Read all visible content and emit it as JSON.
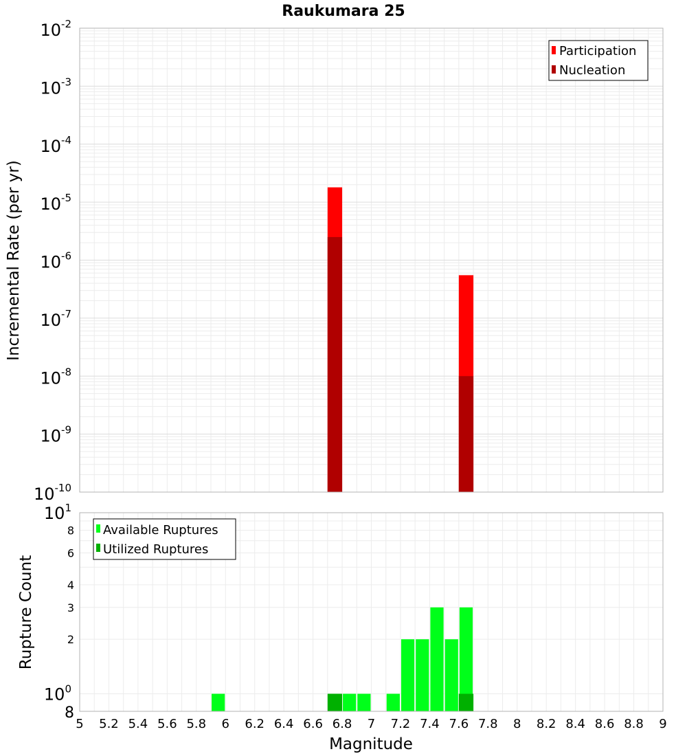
{
  "chart_data": [
    {
      "type": "bar",
      "title": "Raukumara 25",
      "ylabel": "Incremental Rate (per yr)",
      "yscale": "log",
      "ylim": [
        1e-10,
        0.01
      ],
      "xlim": [
        5,
        9
      ],
      "y_ticks": [
        {
          "base": "10",
          "exp": "-2"
        },
        {
          "base": "10",
          "exp": "-3"
        },
        {
          "base": "10",
          "exp": "-4"
        },
        {
          "base": "10",
          "exp": "-5"
        },
        {
          "base": "10",
          "exp": "-6"
        },
        {
          "base": "10",
          "exp": "-7"
        },
        {
          "base": "10",
          "exp": "-8"
        },
        {
          "base": "10",
          "exp": "-9"
        },
        {
          "base": "10",
          "exp": "-10"
        }
      ],
      "grid": true,
      "legend_position": "top-right",
      "series": [
        {
          "name": "Participation",
          "color": "#ff0000",
          "points": [
            {
              "x": 6.75,
              "y": 1.8e-05
            },
            {
              "x": 7.65,
              "y": 5.5e-07
            }
          ]
        },
        {
          "name": "Nucleation",
          "color": "#b00000",
          "points": [
            {
              "x": 6.75,
              "y": 2.5e-06
            },
            {
              "x": 7.65,
              "y": 1e-08
            }
          ]
        }
      ]
    },
    {
      "type": "bar",
      "xlabel": "Magnitude",
      "ylabel": "Rupture Count",
      "yscale": "log",
      "ylim": [
        0.8,
        10
      ],
      "xlim": [
        5,
        9
      ],
      "x_ticks": [
        "5",
        "5.2",
        "5.4",
        "5.6",
        "5.8",
        "6",
        "6.2",
        "6.4",
        "6.6",
        "6.8",
        "7",
        "7.2",
        "7.4",
        "7.6",
        "7.8",
        "8",
        "8.2",
        "8.4",
        "8.6",
        "8.8",
        "9"
      ],
      "y_tick_labels": [
        {
          "base": "10",
          "exp": "1"
        },
        {
          "label": "8"
        },
        {
          "label": "6"
        },
        {
          "label": "4"
        },
        {
          "label": "3"
        },
        {
          "label": "2"
        },
        {
          "base": "10",
          "exp": "0"
        },
        {
          "label": "8"
        }
      ],
      "grid": true,
      "legend_position": "top-left",
      "series": [
        {
          "name": "Available Ruptures",
          "color": "#00ff1a",
          "points": [
            {
              "x": 5.95,
              "y": 1
            },
            {
              "x": 6.75,
              "y": 1
            },
            {
              "x": 6.85,
              "y": 1
            },
            {
              "x": 6.95,
              "y": 1
            },
            {
              "x": 7.15,
              "y": 1
            },
            {
              "x": 7.25,
              "y": 2
            },
            {
              "x": 7.35,
              "y": 2
            },
            {
              "x": 7.45,
              "y": 3
            },
            {
              "x": 7.55,
              "y": 2
            },
            {
              "x": 7.65,
              "y": 3
            }
          ]
        },
        {
          "name": "Utilized Ruptures",
          "color": "#00b000",
          "points": [
            {
              "x": 6.75,
              "y": 1
            },
            {
              "x": 7.65,
              "y": 1
            }
          ]
        }
      ]
    }
  ]
}
